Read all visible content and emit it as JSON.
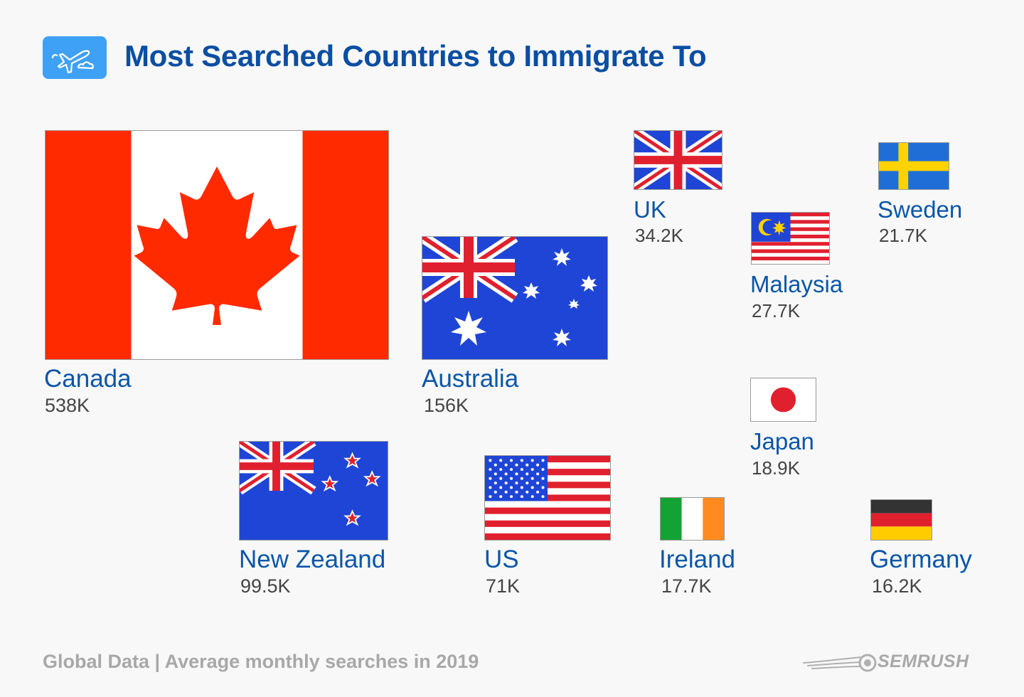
{
  "header": {
    "title": "Most Searched Countries to Immigrate To",
    "icon": "airplane-cloud-icon"
  },
  "chart_data": {
    "type": "pictogram",
    "title": "Most Searched Countries to Immigrate To",
    "unit": "average monthly searches",
    "items": [
      {
        "country": "Canada",
        "value": 538000,
        "label": "538K"
      },
      {
        "country": "Australia",
        "value": 156000,
        "label": "156K"
      },
      {
        "country": "New Zealand",
        "value": 99500,
        "label": "99.5K"
      },
      {
        "country": "US",
        "value": 71000,
        "label": "71K"
      },
      {
        "country": "UK",
        "value": 34200,
        "label": "34.2K"
      },
      {
        "country": "Malaysia",
        "value": 27700,
        "label": "27.7K"
      },
      {
        "country": "Sweden",
        "value": 21700,
        "label": "21.7K"
      },
      {
        "country": "Japan",
        "value": 18900,
        "label": "18.9K"
      },
      {
        "country": "Ireland",
        "value": 17700,
        "label": "17.7K"
      },
      {
        "country": "Germany",
        "value": 16200,
        "label": "16.2K"
      }
    ]
  },
  "footer": {
    "note": "Global Data | Average monthly searches in 2019",
    "brand": "SEMRUSH"
  },
  "colors": {
    "title": "#0b4ea2",
    "country_name": "#0b56a8",
    "value_text": "#444444",
    "footer_text": "#a8a8a8",
    "icon_bg": "#3ea1f5"
  }
}
